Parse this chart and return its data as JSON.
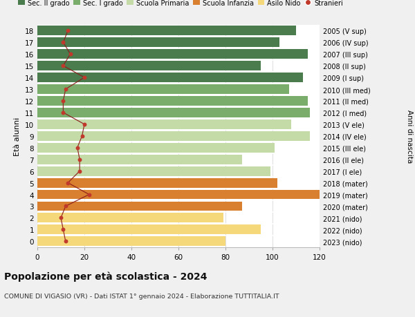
{
  "ages": [
    18,
    17,
    16,
    15,
    14,
    13,
    12,
    11,
    10,
    9,
    8,
    7,
    6,
    5,
    4,
    3,
    2,
    1,
    0
  ],
  "right_labels": [
    "2005 (V sup)",
    "2006 (IV sup)",
    "2007 (III sup)",
    "2008 (II sup)",
    "2009 (I sup)",
    "2010 (III med)",
    "2011 (II med)",
    "2012 (I med)",
    "2013 (V ele)",
    "2014 (IV ele)",
    "2015 (III ele)",
    "2016 (II ele)",
    "2017 (I ele)",
    "2018 (mater)",
    "2019 (mater)",
    "2020 (mater)",
    "2021 (nido)",
    "2022 (nido)",
    "2023 (nido)"
  ],
  "bar_values": [
    110,
    103,
    115,
    95,
    113,
    107,
    115,
    116,
    108,
    116,
    101,
    87,
    99,
    102,
    120,
    87,
    79,
    95,
    80
  ],
  "stranieri": [
    13,
    11,
    14,
    11,
    20,
    12,
    11,
    11,
    20,
    19,
    17,
    18,
    18,
    13,
    22,
    12,
    10,
    11,
    12
  ],
  "bar_colors": [
    "#4a7c4e",
    "#4a7c4e",
    "#4a7c4e",
    "#4a7c4e",
    "#4a7c4e",
    "#7aad6b",
    "#7aad6b",
    "#7aad6b",
    "#c4dba8",
    "#c4dba8",
    "#c4dba8",
    "#c4dba8",
    "#c4dba8",
    "#d98030",
    "#d98030",
    "#d98030",
    "#f5d87a",
    "#f5d87a",
    "#f5d87a"
  ],
  "legend_colors": [
    "#4a7c4e",
    "#7aad6b",
    "#c4dba8",
    "#d98030",
    "#f5d87a",
    "#c0392b"
  ],
  "legend_labels": [
    "Sec. II grado",
    "Sec. I grado",
    "Scuola Primaria",
    "Scuola Infanzia",
    "Asilo Nido",
    "Stranieri"
  ],
  "xlim": [
    0,
    120
  ],
  "xticks": [
    0,
    20,
    40,
    60,
    80,
    100,
    120
  ],
  "ylabel_left": "Età alunni",
  "ylabel_right": "Anni di nascita",
  "title": "Popolazione per età scolastica - 2024",
  "subtitle": "COMUNE DI VIGASIO (VR) - Dati ISTAT 1° gennaio 2024 - Elaborazione TUTTITALIA.IT",
  "bg_color": "#f0f0f0",
  "plot_bg_color": "#ffffff"
}
